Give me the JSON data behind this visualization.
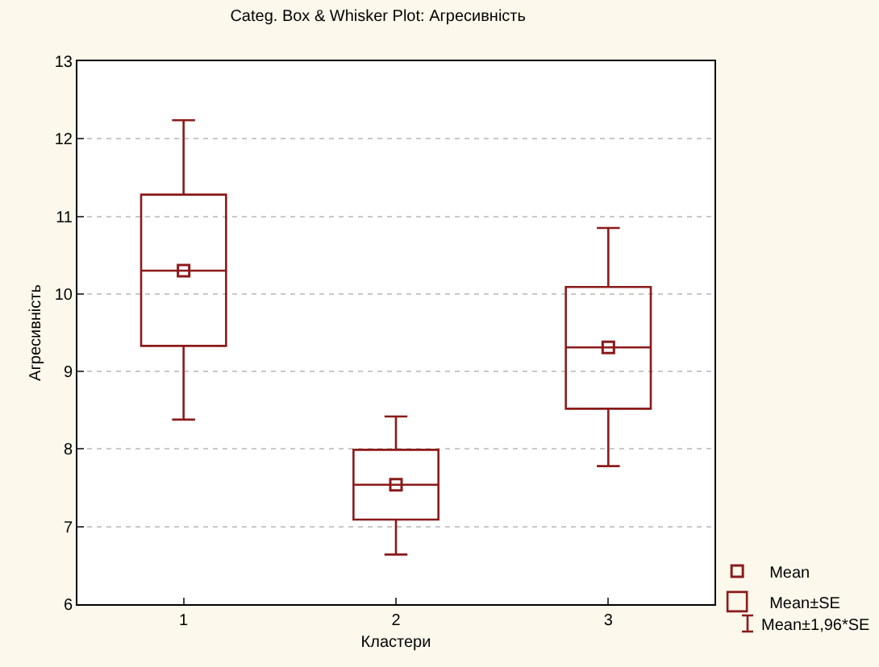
{
  "chart_data": {
    "type": "box",
    "title": "Categ. Box & Whisker Plot: Агресивність",
    "xlabel": "Кластери",
    "ylabel": "Агресивність",
    "categories": [
      "1",
      "2",
      "3"
    ],
    "ylim": [
      6,
      13
    ],
    "yticks": [
      6,
      7,
      8,
      9,
      10,
      11,
      12,
      13
    ],
    "grid": "y",
    "legend": "bottom right",
    "marker": "square",
    "series": [
      {
        "type": "scatter",
        "name": "Mean",
        "color": "#8b1a1a",
        "x": [
          "1",
          "2",
          "3"
        ],
        "values": [
          10.3,
          7.54,
          9.31
        ]
      },
      {
        "type": "box",
        "name": "Mean±SE",
        "color": "#8b1a1a",
        "boxes": [
          {
            "low": 8.38,
            "q1": 9.33,
            "median": 10.3,
            "q3": 11.28,
            "high": 12.24
          },
          {
            "low": 6.64,
            "q1": 7.09,
            "median": 7.54,
            "q3": 7.99,
            "high": 8.42
          },
          {
            "low": 7.78,
            "q1": 8.52,
            "median": 9.31,
            "q3": 10.09,
            "high": 10.85
          }
        ]
      }
    ],
    "annotations": [
      "Mean±1,96*SE"
    ]
  }
}
